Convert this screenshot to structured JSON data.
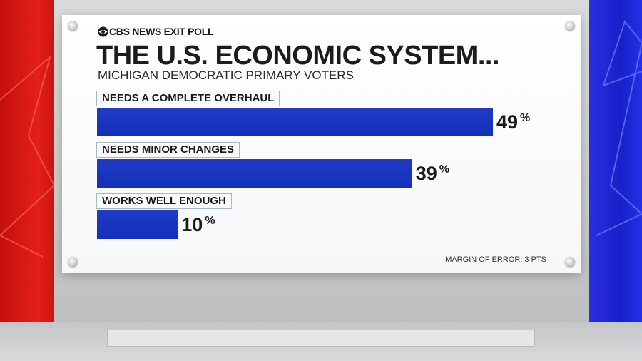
{
  "brand": {
    "text": "CBS NEWS EXIT POLL",
    "icon": "cbs-eye-icon"
  },
  "colors": {
    "bar": "#1732c0",
    "left_panel": "#e01e1a",
    "right_panel": "#1f27d6"
  },
  "chart_data": {
    "type": "bar",
    "orientation": "horizontal",
    "title": "THE U.S. ECONOMIC SYSTEM...",
    "subtitle": "MICHIGAN DEMOCRATIC PRIMARY VOTERS",
    "categories": [
      "NEEDS A COMPLETE OVERHAUL",
      "NEEDS MINOR CHANGES",
      "WORKS WELL ENOUGH"
    ],
    "values": [
      49,
      39,
      10
    ],
    "value_labels": [
      "49",
      "39",
      "10"
    ],
    "unit": "%",
    "xlim": [
      0,
      100
    ],
    "grid": false,
    "footnote": "MARGIN OF ERROR: 3 PTS"
  }
}
